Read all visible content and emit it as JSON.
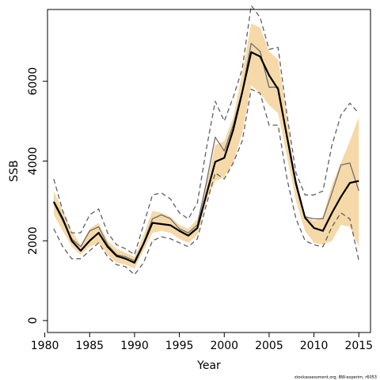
{
  "chart_data": {
    "type": "line",
    "xlabel": "Year",
    "ylabel": "SSB",
    "xlim": [
      1980.3,
      2016.3
    ],
    "ylim": [
      -300,
      7800
    ],
    "x_ticks": [
      1980,
      1985,
      1990,
      1995,
      2000,
      2005,
      2010,
      2015
    ],
    "y_ticks": [
      0,
      2000,
      4000,
      6000
    ],
    "grid": false,
    "legend": "none",
    "footnote": "stockassessment.org, BW-experim, r6053",
    "x": [
      1981,
      1982,
      1983,
      1984,
      1985,
      1986,
      1987,
      1988,
      1989,
      1990,
      1991,
      1992,
      1993,
      1994,
      1995,
      1996,
      1997,
      1998,
      1999,
      2000,
      2001,
      2002,
      2003,
      2004,
      2005,
      2006,
      2007,
      2008,
      2009,
      2010,
      2011,
      2012,
      2013,
      2014,
      2015
    ],
    "series": [
      {
        "role": "confidence-band",
        "color": "#f5d9a8",
        "lower": [
          2650,
          2250,
          1850,
          1650,
          1850,
          1950,
          1650,
          1450,
          1400,
          1300,
          1750,
          2200,
          2250,
          2200,
          2050,
          1950,
          2150,
          3000,
          3500,
          3600,
          3950,
          4700,
          5900,
          5700,
          5400,
          5200,
          4100,
          3000,
          2250,
          1950,
          1900,
          2000,
          2400,
          2350,
          1850
        ],
        "upper": [
          3250,
          2750,
          2250,
          1900,
          2300,
          2450,
          2000,
          1800,
          1700,
          1600,
          2150,
          2750,
          2700,
          2600,
          2400,
          2300,
          2550,
          3400,
          4400,
          4500,
          5100,
          6200,
          7450,
          7350,
          6750,
          6550,
          5100,
          3350,
          2650,
          2500,
          2600,
          3400,
          3950,
          4500,
          5100
        ]
      },
      {
        "role": "point-estimate",
        "color": "#000000",
        "values": [
          2980,
          2550,
          2000,
          1750,
          2000,
          2200,
          1850,
          1620,
          1550,
          1450,
          1920,
          2450,
          2420,
          2390,
          2250,
          2130,
          2320,
          3150,
          3980,
          4080,
          4780,
          5720,
          6730,
          6620,
          6150,
          5800,
          4600,
          3420,
          2580,
          2320,
          2250,
          2700,
          3100,
          3450,
          3500
        ]
      },
      {
        "role": "alternative-estimate",
        "color": "#6e6e6e",
        "values": [
          2950,
          2500,
          2050,
          1850,
          2250,
          2350,
          1900,
          1650,
          1600,
          1500,
          1950,
          2550,
          2650,
          2550,
          2300,
          2200,
          2400,
          3450,
          4600,
          4250,
          4900,
          5750,
          6950,
          6750,
          5850,
          5850,
          4650,
          3500,
          2600,
          2550,
          2550,
          3200,
          3900,
          3950,
          3250
        ]
      },
      {
        "role": "confidence-bound-upper",
        "color": "#5f5f5f",
        "values": [
          3550,
          2750,
          2200,
          2200,
          2650,
          2800,
          2200,
          1900,
          1800,
          1650,
          2400,
          3150,
          3200,
          3050,
          2700,
          2550,
          2950,
          4300,
          5500,
          5000,
          5600,
          6300,
          7900,
          7600,
          6800,
          6850,
          5150,
          3700,
          3150,
          3150,
          3250,
          4400,
          5150,
          5450,
          5200
        ]
      },
      {
        "role": "confidence-bound-lower",
        "color": "#5f5f5f",
        "values": [
          2300,
          1850,
          1550,
          1550,
          1750,
          1950,
          1600,
          1400,
          1350,
          1150,
          1450,
          2000,
          2100,
          2050,
          1950,
          1850,
          2050,
          2900,
          3700,
          3550,
          3950,
          4500,
          5800,
          5700,
          4900,
          4900,
          3550,
          2550,
          2000,
          1900,
          1850,
          2350,
          2700,
          2550,
          1500
        ]
      }
    ]
  }
}
